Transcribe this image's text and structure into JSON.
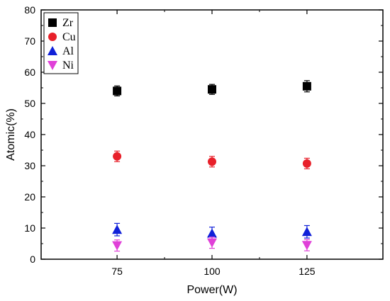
{
  "chart_data": {
    "type": "scatter",
    "xlabel": "Power(W)",
    "ylabel": "Atomic(%)",
    "x": [
      75,
      100,
      125
    ],
    "x_ticks": [
      "75",
      "100",
      "125"
    ],
    "xlim": [
      55,
      145
    ],
    "ylim": [
      0,
      80
    ],
    "y_ticks": [
      "0",
      "10",
      "20",
      "30",
      "40",
      "50",
      "60",
      "70",
      "80"
    ],
    "grid": false,
    "legend_position": "top-left",
    "series": [
      {
        "name": "Zr",
        "marker": "square",
        "color": "#000000",
        "values": [
          54.0,
          54.5,
          55.5
        ],
        "errors": [
          1.6,
          1.6,
          1.8
        ]
      },
      {
        "name": "Cu",
        "marker": "circle",
        "color": "#e8202a",
        "values": [
          33.0,
          31.3,
          30.7
        ],
        "errors": [
          1.7,
          1.7,
          1.7
        ]
      },
      {
        "name": "Al",
        "marker": "triangle-up",
        "color": "#1020d8",
        "values": [
          9.5,
          8.3,
          8.8
        ],
        "errors": [
          2.0,
          2.0,
          2.0
        ]
      },
      {
        "name": "Ni",
        "marker": "triangle-down",
        "color": "#e040d8",
        "values": [
          4.4,
          5.3,
          4.5
        ],
        "errors": [
          1.8,
          1.8,
          1.8
        ]
      }
    ]
  }
}
